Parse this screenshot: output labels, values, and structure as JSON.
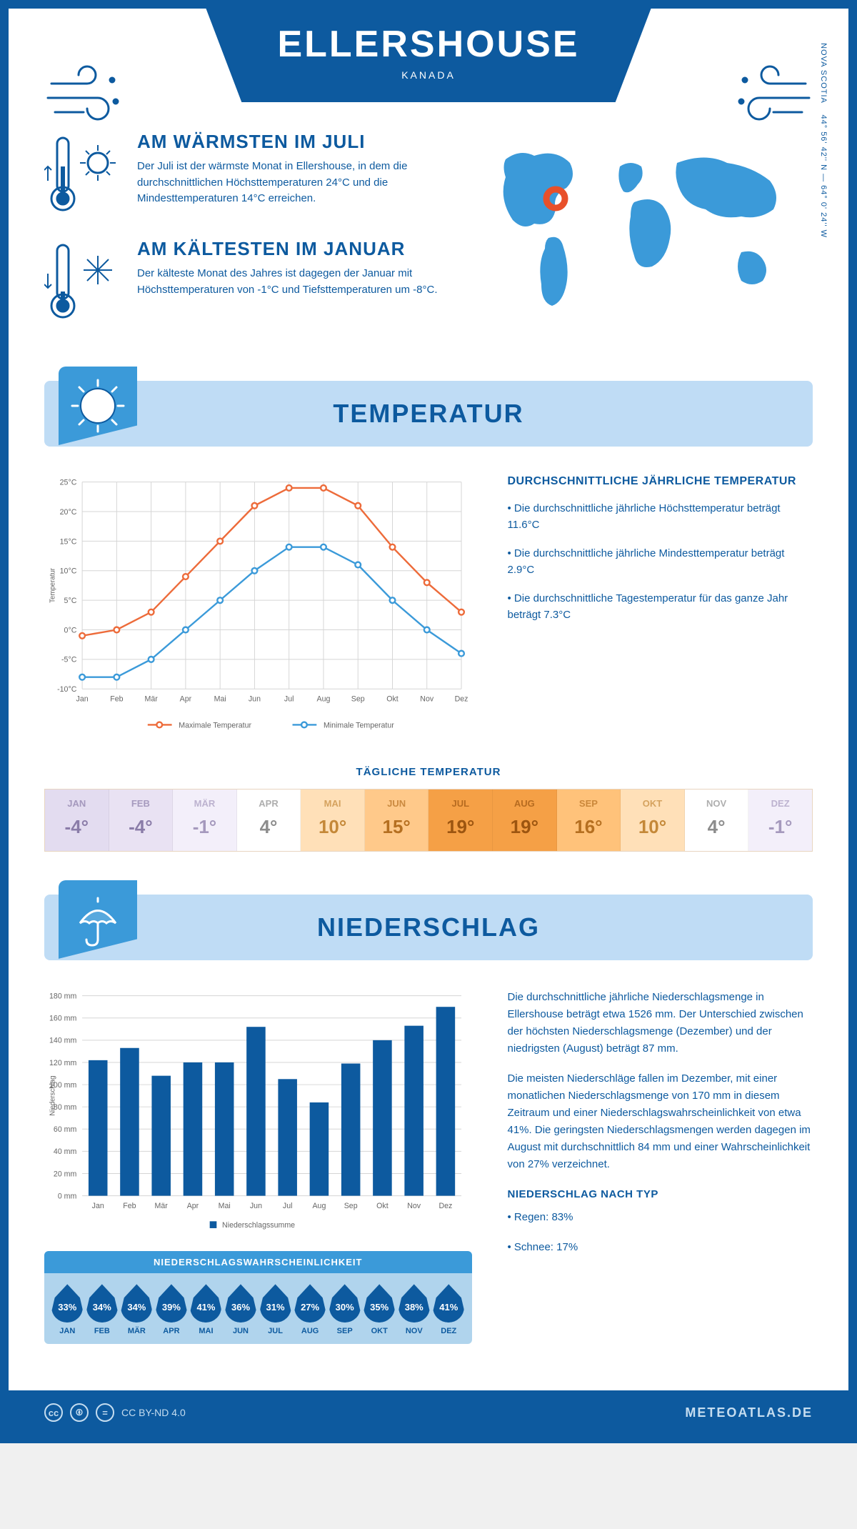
{
  "header": {
    "title": "ELLERSHOUSE",
    "subtitle": "KANADA"
  },
  "coords": {
    "lat": "44° 56' 42'' N",
    "lon": "64° 0' 24'' W",
    "region": "NOVA SCOTIA"
  },
  "warmest": {
    "title": "AM WÄRMSTEN IM JULI",
    "text": "Der Juli ist der wärmste Monat in Ellershouse, in dem die durchschnittlichen Höchsttemperaturen 24°C und die Mindesttemperaturen 14°C erreichen."
  },
  "coldest": {
    "title": "AM KÄLTESTEN IM JANUAR",
    "text": "Der kälteste Monat des Jahres ist dagegen der Januar mit Höchsttemperaturen von -1°C und Tiefsttemperaturen um -8°C."
  },
  "temp_section": {
    "title": "TEMPERATUR",
    "chart": {
      "months": [
        "Jan",
        "Feb",
        "Mär",
        "Apr",
        "Mai",
        "Jun",
        "Jul",
        "Aug",
        "Sep",
        "Okt",
        "Nov",
        "Dez"
      ],
      "max": [
        -1,
        0,
        3,
        9,
        15,
        21,
        24,
        24,
        21,
        14,
        8,
        3
      ],
      "min": [
        -8,
        -8,
        -5,
        0,
        5,
        10,
        14,
        14,
        11,
        5,
        0,
        -4
      ],
      "max_color": "#ed6b3a",
      "min_color": "#3b9ad9",
      "grid_color": "#d5d5d5",
      "ylim": [
        -10,
        25
      ],
      "ytick_step": 5,
      "ylabel": "Temperatur",
      "legend_max": "Maximale Temperatur",
      "legend_min": "Minimale Temperatur"
    },
    "info": {
      "title": "DURCHSCHNITTLICHE JÄHRLICHE TEMPERATUR",
      "line1": "• Die durchschnittliche jährliche Höchsttemperatur beträgt 11.6°C",
      "line2": "• Die durchschnittliche jährliche Mindesttemperatur beträgt 2.9°C",
      "line3": "• Die durchschnittliche Tagestemperatur für das ganze Jahr beträgt 7.3°C"
    }
  },
  "daily": {
    "title": "TÄGLICHE TEMPERATUR",
    "cells": [
      {
        "m": "JAN",
        "t": "-4°",
        "bg": "#e3dcf0",
        "fg": "#8a7ca8"
      },
      {
        "m": "FEB",
        "t": "-4°",
        "bg": "#e9e2f3",
        "fg": "#8a7ca8"
      },
      {
        "m": "MÄR",
        "t": "-1°",
        "bg": "#f3effa",
        "fg": "#a599bd"
      },
      {
        "m": "APR",
        "t": "4°",
        "bg": "#ffffff",
        "fg": "#8c8c8c"
      },
      {
        "m": "MAI",
        "t": "10°",
        "bg": "#ffe0b8",
        "fg": "#c48838"
      },
      {
        "m": "JUN",
        "t": "15°",
        "bg": "#ffc98a",
        "fg": "#b56f20"
      },
      {
        "m": "JUL",
        "t": "19°",
        "bg": "#f5a046",
        "fg": "#9c5510"
      },
      {
        "m": "AUG",
        "t": "19°",
        "bg": "#f5a046",
        "fg": "#9c5510"
      },
      {
        "m": "SEP",
        "t": "16°",
        "bg": "#ffc27a",
        "fg": "#b56f20"
      },
      {
        "m": "OKT",
        "t": "10°",
        "bg": "#ffe0b8",
        "fg": "#c48838"
      },
      {
        "m": "NOV",
        "t": "4°",
        "bg": "#ffffff",
        "fg": "#8c8c8c"
      },
      {
        "m": "DEZ",
        "t": "-1°",
        "bg": "#f3effa",
        "fg": "#a599bd"
      }
    ]
  },
  "precip_section": {
    "title": "NIEDERSCHLAG",
    "chart": {
      "months": [
        "Jan",
        "Feb",
        "Mär",
        "Apr",
        "Mai",
        "Jun",
        "Jul",
        "Aug",
        "Sep",
        "Okt",
        "Nov",
        "Dez"
      ],
      "values": [
        122,
        133,
        108,
        120,
        120,
        152,
        105,
        84,
        119,
        140,
        153,
        170
      ],
      "bar_color": "#0d5a9f",
      "grid_color": "#d5d5d5",
      "ylim": [
        0,
        180
      ],
      "ytick_step": 20,
      "ylabel": "Niederschlag",
      "legend": "Niederschlagssumme"
    },
    "text1": "Die durchschnittliche jährliche Niederschlagsmenge in Ellershouse beträgt etwa 1526 mm. Der Unterschied zwischen der höchsten Niederschlagsmenge (Dezember) und der niedrigsten (August) beträgt 87 mm.",
    "text2": "Die meisten Niederschläge fallen im Dezember, mit einer monatlichen Niederschlagsmenge von 170 mm in diesem Zeitraum und einer Niederschlagswahrscheinlichkeit von etwa 41%. Die geringsten Niederschlagsmengen werden dagegen im August mit durchschnittlich 84 mm und einer Wahrscheinlichkeit von 27% verzeichnet.",
    "type_title": "NIEDERSCHLAG NACH TYP",
    "type1": "• Regen: 83%",
    "type2": "• Schnee: 17%"
  },
  "probability": {
    "title": "NIEDERSCHLAGSWAHRSCHEINLICHKEIT",
    "cells": [
      {
        "p": "33%",
        "m": "JAN"
      },
      {
        "p": "34%",
        "m": "FEB"
      },
      {
        "p": "34%",
        "m": "MÄR"
      },
      {
        "p": "39%",
        "m": "APR"
      },
      {
        "p": "41%",
        "m": "MAI"
      },
      {
        "p": "36%",
        "m": "JUN"
      },
      {
        "p": "31%",
        "m": "JUL"
      },
      {
        "p": "27%",
        "m": "AUG"
      },
      {
        "p": "30%",
        "m": "SEP"
      },
      {
        "p": "35%",
        "m": "OKT"
      },
      {
        "p": "38%",
        "m": "NOV"
      },
      {
        "p": "41%",
        "m": "DEZ"
      }
    ]
  },
  "footer": {
    "license": "CC BY-ND 4.0",
    "brand": "METEOATLAS.DE"
  },
  "colors": {
    "primary": "#0d5a9f",
    "light": "#bfdcf5",
    "accent": "#3b9ad9"
  }
}
